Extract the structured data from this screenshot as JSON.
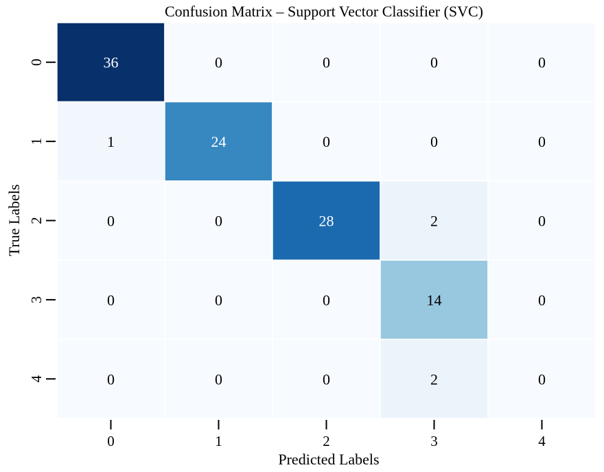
{
  "chart_data": {
    "type": "heatmap",
    "title": "Confusion Matrix – Support Vector Classifier (SVC)",
    "xlabel": "Predicted Labels",
    "ylabel": "True Labels",
    "x_categories": [
      "0",
      "1",
      "2",
      "3",
      "4"
    ],
    "y_categories": [
      "0",
      "1",
      "2",
      "3",
      "4"
    ],
    "values": [
      [
        36,
        0,
        0,
        0,
        0
      ],
      [
        1,
        24,
        0,
        0,
        0
      ],
      [
        0,
        0,
        28,
        2,
        0
      ],
      [
        0,
        0,
        0,
        14,
        0
      ],
      [
        0,
        0,
        0,
        2,
        0
      ]
    ],
    "colormap": "Blues",
    "colorbar": false,
    "annotated": true,
    "color_low": "#f7fbff",
    "color_high": "#08306b",
    "annotation_dark_text": "#000000",
    "annotation_light_text": "#ffffff"
  }
}
